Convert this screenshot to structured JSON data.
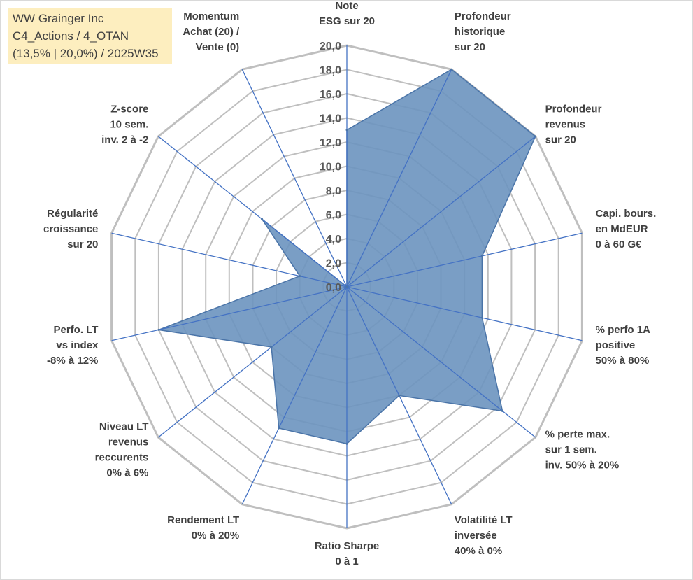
{
  "header": {
    "line1": "WW Grainger Inc",
    "line2": "C4_Actions / 4_OTAN",
    "line3": "(13,5% | 20,0%) / 2025W35"
  },
  "chart_data": {
    "type": "radar",
    "rmax": 20,
    "ticks": [
      "0,0",
      "2,0",
      "4,0",
      "6,0",
      "8,0",
      "10,0",
      "12,0",
      "14,0",
      "16,0",
      "18,0",
      "20,0"
    ],
    "colors": {
      "fill": "#6b93bf",
      "stroke": "#4a74a8",
      "spoke": "#4472c4",
      "grid": "#bfbfbf"
    },
    "axes": [
      {
        "label": [
          "Note",
          "ESG sur 20"
        ],
        "value": 13.0
      },
      {
        "label": [
          "Profondeur",
          "historique",
          "sur 20"
        ],
        "value": 20.0
      },
      {
        "label": [
          "Profondeur",
          "revenus",
          "sur 20"
        ],
        "value": 20.0
      },
      {
        "label": [
          "Capi. bours.",
          "en MdEUR",
          "0 à 60 G€"
        ],
        "value": 11.5
      },
      {
        "label": [
          "% perfo 1A",
          "positive",
          "50% à 80%"
        ],
        "value": 11.5
      },
      {
        "label": [
          "% perte max.",
          "sur 1 sem.",
          "inv. 50% à 20%"
        ],
        "value": 16.5
      },
      {
        "label": [
          "Volatilité LT",
          "inversée",
          "40% à 0%"
        ],
        "value": 10.0
      },
      {
        "label": [
          "Ratio Sharpe",
          "0 à 1"
        ],
        "value": 13.0
      },
      {
        "label": [
          "Rendement LT",
          "0% à 20%"
        ],
        "value": 13.0
      },
      {
        "label": [
          "Niveau LT",
          "revenus",
          "reccurents",
          "0% à 6%"
        ],
        "value": 8.0
      },
      {
        "label": [
          "Perfo. LT",
          "vs index",
          "-8% à 12%"
        ],
        "value": 16.0
      },
      {
        "label": [
          "Régularité",
          "croissance",
          "sur 20"
        ],
        "value": 4.0
      },
      {
        "label": [
          "Z-score",
          "10 sem.",
          "inv. 2 à -2"
        ],
        "value": 9.0
      },
      {
        "label": [
          "Momentum",
          "Achat (20) /",
          "Vente (0)"
        ],
        "value": 0.0
      }
    ]
  }
}
